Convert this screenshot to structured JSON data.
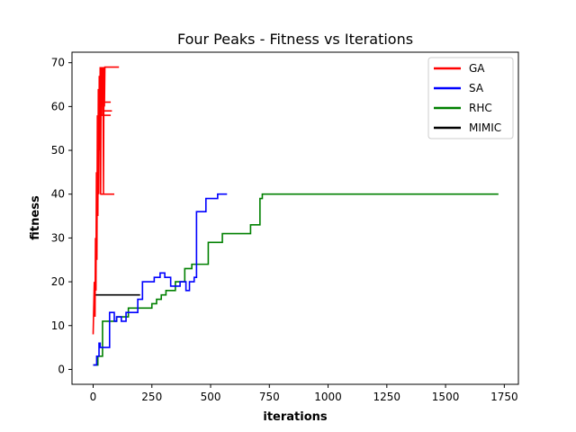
{
  "chart_data": {
    "type": "line",
    "title": "Four Peaks - Fitness vs Iterations",
    "xlabel": "iterations",
    "ylabel": "fitness",
    "xlim": [
      -90,
      1810
    ],
    "ylim": [
      -3.4,
      72.4
    ],
    "xticks": [
      0,
      250,
      500,
      750,
      1000,
      1250,
      1500,
      1750
    ],
    "yticks": [
      0,
      10,
      20,
      30,
      40,
      50,
      60,
      70
    ],
    "grid": false,
    "legend_position": "top-right",
    "series": [
      {
        "name": "GA",
        "color": "#ff0000",
        "mode": "zigzag",
        "points": [
          [
            0,
            8
          ],
          [
            5,
            20
          ],
          [
            8,
            12
          ],
          [
            10,
            30
          ],
          [
            12,
            18
          ],
          [
            14,
            45
          ],
          [
            16,
            25
          ],
          [
            18,
            58
          ],
          [
            20,
            35
          ],
          [
            22,
            64
          ],
          [
            24,
            40
          ],
          [
            26,
            67
          ],
          [
            28,
            50
          ],
          [
            30,
            69
          ],
          [
            32,
            40
          ],
          [
            34,
            69
          ],
          [
            36,
            58
          ],
          [
            38,
            69
          ],
          [
            40,
            62
          ],
          [
            42,
            69
          ],
          [
            44,
            40
          ],
          [
            46,
            69
          ],
          [
            48,
            60
          ],
          [
            50,
            69
          ],
          [
            55,
            69
          ],
          [
            60,
            69
          ],
          [
            65,
            69
          ],
          [
            70,
            69
          ],
          [
            80,
            69
          ],
          [
            90,
            69
          ],
          [
            100,
            69
          ],
          [
            110,
            69
          ]
        ],
        "extras": [
          [
            [
              30,
              40
            ],
            [
              90,
              40
            ]
          ],
          [
            [
              30,
              58
            ],
            [
              75,
              58
            ]
          ],
          [
            [
              40,
              59
            ],
            [
              80,
              59
            ]
          ],
          [
            [
              45,
              61
            ],
            [
              75,
              61
            ]
          ]
        ]
      },
      {
        "name": "SA",
        "color": "#0000ff",
        "mode": "step",
        "points": [
          [
            0,
            1
          ],
          [
            15,
            3
          ],
          [
            25,
            6
          ],
          [
            30,
            5
          ],
          [
            70,
            13
          ],
          [
            90,
            11
          ],
          [
            100,
            12
          ],
          [
            120,
            11
          ],
          [
            140,
            13
          ],
          [
            160,
            13
          ],
          [
            190,
            16
          ],
          [
            210,
            20
          ],
          [
            260,
            21
          ],
          [
            285,
            22
          ],
          [
            305,
            21
          ],
          [
            330,
            19
          ],
          [
            370,
            20
          ],
          [
            395,
            18
          ],
          [
            410,
            20
          ],
          [
            430,
            21
          ],
          [
            440,
            36
          ],
          [
            480,
            39
          ],
          [
            530,
            40
          ],
          [
            570,
            40
          ]
        ]
      },
      {
        "name": "RHC",
        "color": "#008000",
        "mode": "step",
        "points": [
          [
            0,
            1
          ],
          [
            20,
            3
          ],
          [
            40,
            11
          ],
          [
            100,
            12
          ],
          [
            150,
            14
          ],
          [
            210,
            14
          ],
          [
            250,
            15
          ],
          [
            270,
            16
          ],
          [
            290,
            17
          ],
          [
            310,
            18
          ],
          [
            350,
            20
          ],
          [
            390,
            23
          ],
          [
            420,
            24
          ],
          [
            490,
            29
          ],
          [
            550,
            31
          ],
          [
            670,
            33
          ],
          [
            710,
            39
          ],
          [
            720,
            40
          ],
          [
            1725,
            40
          ]
        ]
      },
      {
        "name": "MIMIC",
        "color": "#000000",
        "mode": "step",
        "points": [
          [
            0,
            14
          ],
          [
            5,
            17
          ],
          [
            200,
            17
          ]
        ]
      }
    ]
  }
}
